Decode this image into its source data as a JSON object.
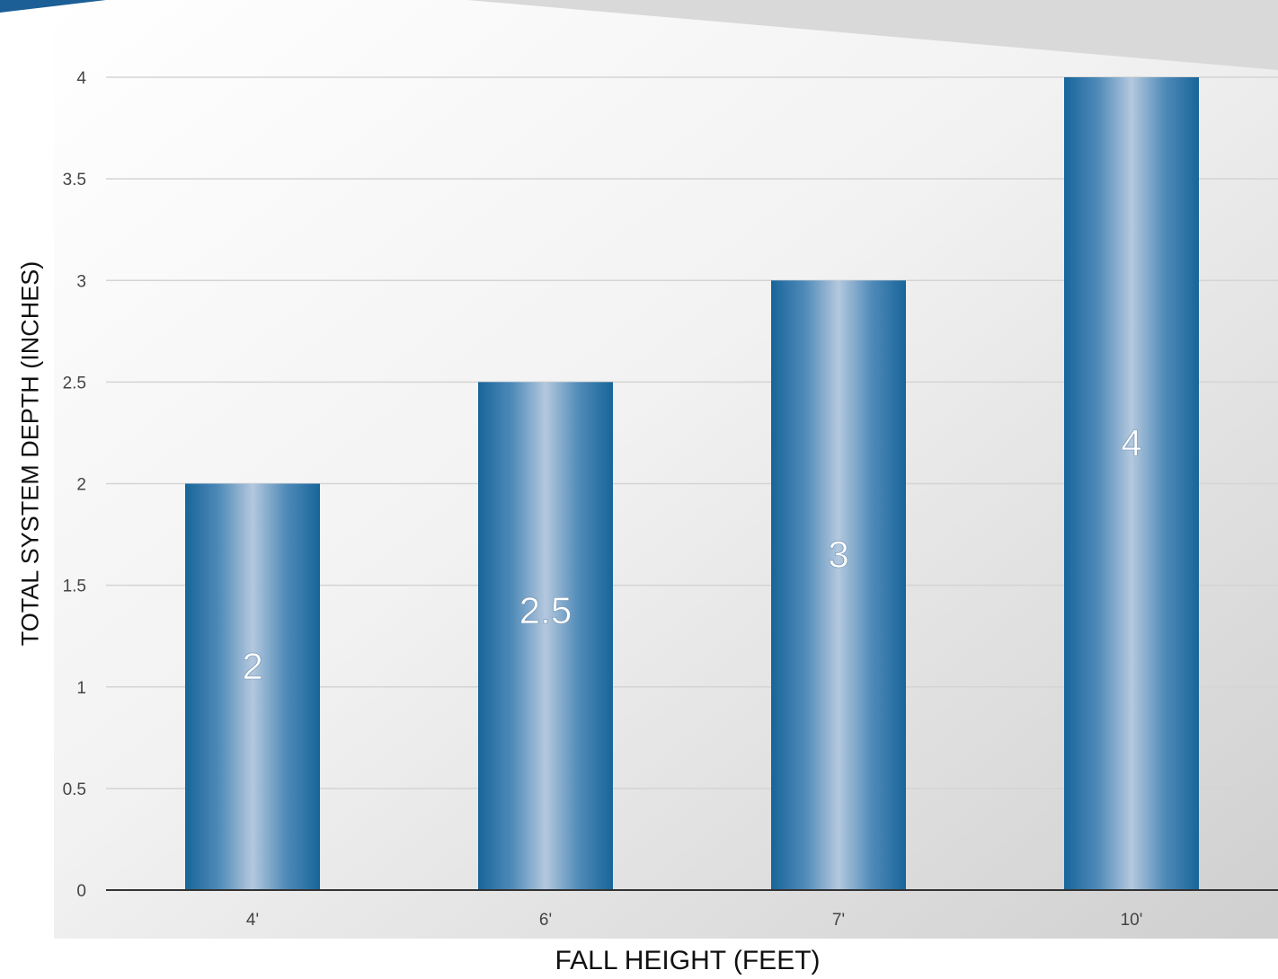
{
  "chart_data": {
    "type": "bar",
    "categories": [
      "4'",
      "6'",
      "7'",
      "10'"
    ],
    "values": [
      2,
      2.5,
      3,
      4
    ],
    "data_labels": [
      "2",
      "2.5",
      "3",
      "4"
    ],
    "xlabel": "FALL HEIGHT (FEET)",
    "ylabel": "TOTAL SYSTEM DEPTH (INCHES)",
    "yticks": [
      "0",
      "0.5",
      "1",
      "1.5",
      "2",
      "2.5",
      "3",
      "3.5",
      "4"
    ],
    "ylim": [
      0,
      4
    ],
    "grid": true,
    "legend": "none",
    "colors": {
      "bar_dark": "#17659a",
      "bar_light": "#b4c8de",
      "accent": "#1c5f96"
    }
  }
}
